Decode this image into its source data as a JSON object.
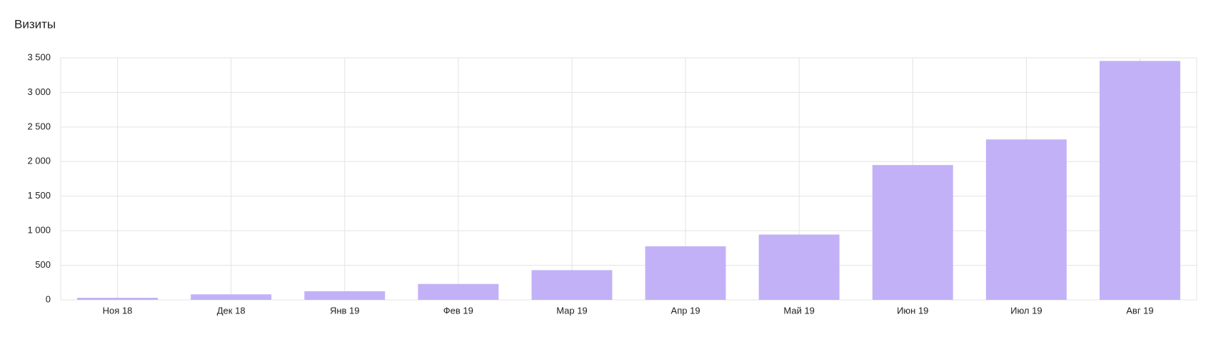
{
  "chart_data": {
    "type": "bar",
    "title": "Визиты",
    "categories": [
      "Ноя 18",
      "Дек 18",
      "Янв 19",
      "Фев 19",
      "Мар 19",
      "Апр 19",
      "Май 19",
      "Июн 19",
      "Июл 19",
      "Авг 19"
    ],
    "values": [
      30,
      80,
      125,
      230,
      430,
      775,
      945,
      1950,
      2320,
      3455
    ],
    "color": "#c3b1f7",
    "ylim": [
      0,
      3500
    ],
    "yticks": [
      0,
      500,
      {
        "value": 1000,
        "label": "1 000"
      },
      {
        "value": 1500,
        "label": "1 500"
      },
      {
        "value": 2000,
        "label": "2 000"
      },
      {
        "value": 2500,
        "label": "2 500"
      },
      {
        "value": 3000,
        "label": "3 000"
      },
      {
        "value": 3500,
        "label": "3 500"
      }
    ],
    "grid": true
  }
}
